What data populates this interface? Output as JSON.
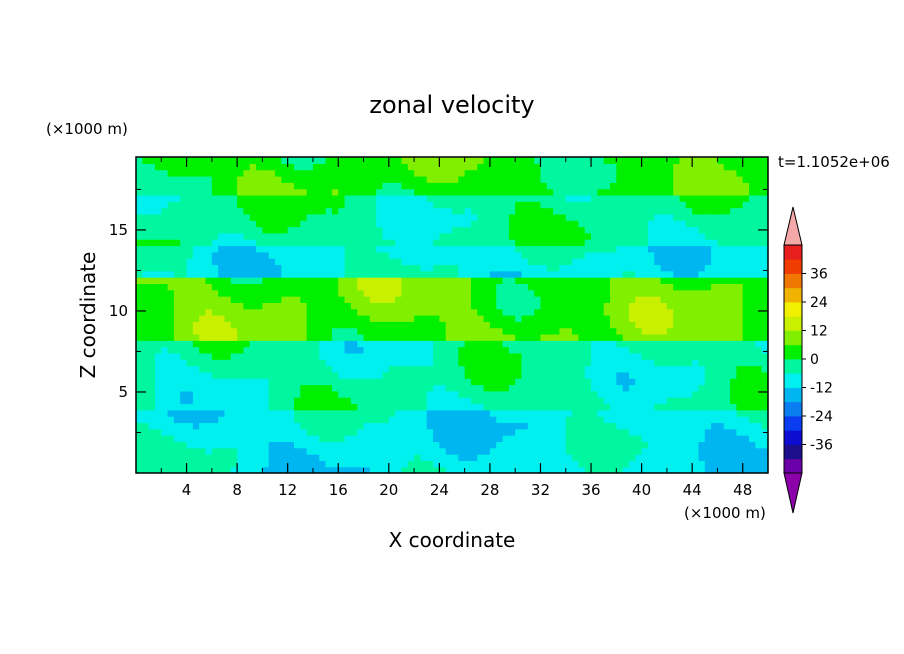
{
  "chart_data": {
    "type": "heatmap",
    "title": "zonal velocity",
    "xlabel": "X coordinate",
    "ylabel": "Z coordinate",
    "x_unit": "(×1000 m)",
    "y_unit": "(×1000 m)",
    "time_label": "t=1.1052e+06",
    "xlim": [
      0,
      50
    ],
    "ylim": [
      0,
      19.5
    ],
    "x_ticks": [
      4,
      8,
      12,
      16,
      20,
      24,
      28,
      32,
      36,
      40,
      44,
      48
    ],
    "y_ticks": [
      5,
      10,
      15
    ],
    "colorbar": {
      "levels": [
        -42,
        -36,
        -30,
        -24,
        -18,
        -12,
        -6,
        0,
        6,
        12,
        18,
        24,
        30,
        36,
        42
      ],
      "tick_labels": [
        "36",
        "24",
        "12",
        "0",
        "-12",
        "-24",
        "-36"
      ],
      "tick_values": [
        36,
        24,
        12,
        0,
        -12,
        -24,
        -36
      ],
      "colors": [
        "#6a00a8",
        "#1c0f8c",
        "#0d0dd2",
        "#0a3cf0",
        "#0a7ef0",
        "#00b6f0",
        "#00f0f0",
        "#00f7a0",
        "#00f000",
        "#80f000",
        "#c8f000",
        "#f0f000",
        "#f0b400",
        "#f07800",
        "#f03c00",
        "#e61e1e"
      ],
      "under_color": "#8b00a8",
      "over_color": "#f4a8a8"
    },
    "field": {
      "description_bands": [
        {
          "z_range": [
            17,
            19.5
          ],
          "value": 3
        },
        {
          "z_range": [
            14,
            17
          ],
          "value": -3
        },
        {
          "z_range": [
            12,
            14
          ],
          "value": -8
        },
        {
          "z_range": [
            8,
            12
          ],
          "value": 6
        },
        {
          "z_range": [
            4,
            8
          ],
          "value": -4
        },
        {
          "z_range": [
            0,
            4
          ],
          "value": -9
        }
      ]
    }
  }
}
